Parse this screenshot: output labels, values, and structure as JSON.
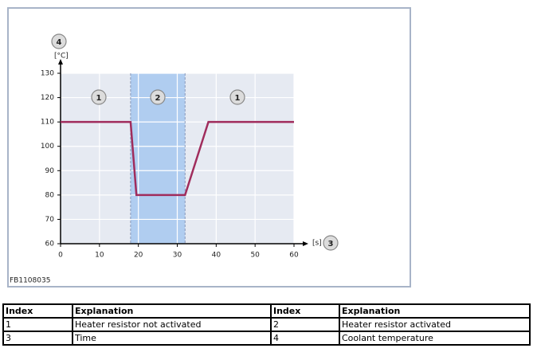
{
  "chart_data": {
    "type": "line",
    "x": [
      0,
      18,
      19.5,
      32,
      38,
      60
    ],
    "series": [
      {
        "color": "#a02c5c",
        "values": [
          110,
          110,
          80,
          80,
          110,
          110
        ]
      }
    ],
    "xlim": [
      0,
      60
    ],
    "ylim": [
      60,
      130
    ],
    "xticks": [
      0,
      10,
      20,
      30,
      40,
      50,
      60
    ],
    "yticks": [
      60,
      70,
      80,
      90,
      100,
      110,
      120,
      130
    ],
    "grid": true,
    "y_unit": "[°C]",
    "x_unit": "[s]",
    "y_badge": "4",
    "x_badge": "3",
    "shaded_region": [
      18,
      32
    ],
    "region_labels": [
      "1",
      "2",
      "1"
    ],
    "figure_id": "FB1108035"
  },
  "table": {
    "header": [
      "Index",
      "Explanation",
      "Index",
      "Explanation"
    ],
    "rows": [
      [
        "1",
        "Heater resistor not activated",
        "2",
        "Heater resistor activated"
      ],
      [
        "3",
        "Time",
        "4",
        "Coolant temperature"
      ]
    ]
  }
}
